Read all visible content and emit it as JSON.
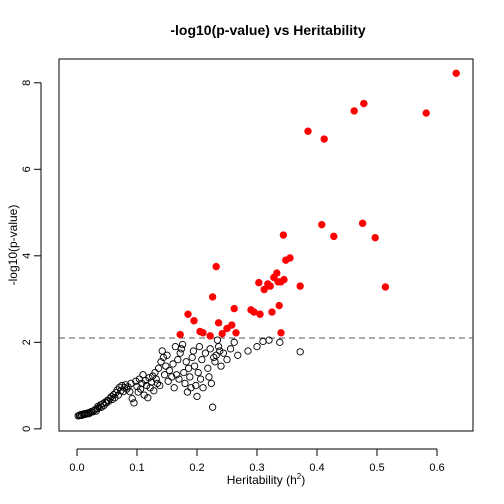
{
  "chart_data": {
    "type": "scatter",
    "title": "-log10(p-value) vs Heritability",
    "xlabel": "Heritability (h",
    "xlabel_superscript": "2",
    "xlabel_suffix": ")",
    "ylabel": "-log10(p-value)",
    "xlim": [
      -0.03,
      0.66
    ],
    "ylim": [
      -0.05,
      8.55
    ],
    "xticks": [
      "0.0",
      "0.1",
      "0.2",
      "0.3",
      "0.4",
      "0.5",
      "0.6"
    ],
    "xtick_values": [
      0,
      0.1,
      0.2,
      0.3,
      0.4,
      0.5,
      0.6
    ],
    "yticks": [
      "0",
      "2",
      "4",
      "6",
      "8"
    ],
    "ytick_values": [
      0,
      2,
      4,
      6,
      8
    ],
    "threshold": 2.1,
    "grid": false,
    "colors": {
      "significant": "#ff0000",
      "nonsignificant": "#000000",
      "threshold_line": "#555555"
    },
    "series": [
      {
        "marker": "open-circle",
        "points": [
          [
            0.002,
            0.3
          ],
          [
            0.004,
            0.31
          ],
          [
            0.005,
            0.32
          ],
          [
            0.007,
            0.33
          ],
          [
            0.008,
            0.31
          ],
          [
            0.01,
            0.34
          ],
          [
            0.012,
            0.33
          ],
          [
            0.013,
            0.35
          ],
          [
            0.015,
            0.34
          ],
          [
            0.017,
            0.36
          ],
          [
            0.019,
            0.37
          ],
          [
            0.02,
            0.35
          ],
          [
            0.022,
            0.38
          ],
          [
            0.024,
            0.4
          ],
          [
            0.026,
            0.39
          ],
          [
            0.028,
            0.42
          ],
          [
            0.03,
            0.44
          ],
          [
            0.032,
            0.41
          ],
          [
            0.034,
            0.47
          ],
          [
            0.035,
            0.52
          ],
          [
            0.037,
            0.49
          ],
          [
            0.039,
            0.55
          ],
          [
            0.041,
            0.5
          ],
          [
            0.043,
            0.58
          ],
          [
            0.045,
            0.54
          ],
          [
            0.047,
            0.62
          ],
          [
            0.049,
            0.6
          ],
          [
            0.051,
            0.66
          ],
          [
            0.053,
            0.64
          ],
          [
            0.055,
            0.7
          ],
          [
            0.057,
            0.74
          ],
          [
            0.059,
            0.68
          ],
          [
            0.061,
            0.79
          ],
          [
            0.063,
            0.72
          ],
          [
            0.065,
            0.84
          ],
          [
            0.067,
            0.9
          ],
          [
            0.069,
            0.78
          ],
          [
            0.071,
            0.96
          ],
          [
            0.073,
            0.88
          ],
          [
            0.075,
            1.0
          ],
          [
            0.077,
            0.86
          ],
          [
            0.079,
            0.95
          ],
          [
            0.081,
            1.02
          ],
          [
            0.083,
            0.92
          ],
          [
            0.085,
            0.97
          ],
          [
            0.088,
            0.86
          ],
          [
            0.09,
            1.05
          ],
          [
            0.092,
            0.7
          ],
          [
            0.095,
            0.6
          ],
          [
            0.098,
            1.1
          ],
          [
            0.1,
            0.98
          ],
          [
            0.102,
            0.85
          ],
          [
            0.104,
            1.15
          ],
          [
            0.106,
            0.92
          ],
          [
            0.108,
            1.05
          ],
          [
            0.11,
            1.25
          ],
          [
            0.112,
            0.78
          ],
          [
            0.114,
            1.12
          ],
          [
            0.116,
            1.0
          ],
          [
            0.118,
            0.72
          ],
          [
            0.12,
            1.18
          ],
          [
            0.122,
            0.95
          ],
          [
            0.124,
            1.08
          ],
          [
            0.126,
            1.22
          ],
          [
            0.128,
            0.88
          ],
          [
            0.13,
            1.3
          ],
          [
            0.132,
            1.15
          ],
          [
            0.134,
            1.05
          ],
          [
            0.136,
            1.4
          ],
          [
            0.138,
            1.0
          ],
          [
            0.14,
            1.55
          ],
          [
            0.142,
            1.8
          ],
          [
            0.144,
            1.65
          ],
          [
            0.146,
            1.25
          ],
          [
            0.148,
            1.45
          ],
          [
            0.15,
            1.7
          ],
          [
            0.152,
            1.1
          ],
          [
            0.154,
            1.35
          ],
          [
            0.158,
            1.2
          ],
          [
            0.16,
            1.5
          ],
          [
            0.162,
            0.95
          ],
          [
            0.164,
            1.9
          ],
          [
            0.166,
            1.25
          ],
          [
            0.168,
            1.6
          ],
          [
            0.17,
            1.15
          ],
          [
            0.172,
            1.75
          ],
          [
            0.174,
            1.85
          ],
          [
            0.176,
            1.95
          ],
          [
            0.178,
            1.3
          ],
          [
            0.18,
            1.05
          ],
          [
            0.182,
            1.55
          ],
          [
            0.184,
            0.85
          ],
          [
            0.186,
            1.4
          ],
          [
            0.188,
            1.2
          ],
          [
            0.19,
            0.95
          ],
          [
            0.192,
            1.65
          ],
          [
            0.194,
            1.8
          ],
          [
            0.196,
            1.45
          ],
          [
            0.198,
            1.0
          ],
          [
            0.2,
            0.75
          ],
          [
            0.202,
            1.3
          ],
          [
            0.204,
            1.9
          ],
          [
            0.206,
            1.15
          ],
          [
            0.208,
            1.6
          ],
          [
            0.21,
            0.95
          ],
          [
            0.214,
            1.75
          ],
          [
            0.218,
            1.4
          ],
          [
            0.22,
            1.2
          ],
          [
            0.222,
            1.85
          ],
          [
            0.224,
            1.05
          ],
          [
            0.226,
            0.5
          ],
          [
            0.228,
            1.65
          ],
          [
            0.23,
            1.55
          ],
          [
            0.232,
            1.7
          ],
          [
            0.234,
            2.05
          ],
          [
            0.236,
            1.9
          ],
          [
            0.238,
            1.8
          ],
          [
            0.24,
            1.45
          ],
          [
            0.244,
            1.75
          ],
          [
            0.25,
            1.6
          ],
          [
            0.256,
            1.85
          ],
          [
            0.262,
            2.0
          ],
          [
            0.268,
            1.7
          ],
          [
            0.285,
            1.8
          ],
          [
            0.3,
            1.9
          ],
          [
            0.31,
            2.02
          ],
          [
            0.32,
            2.05
          ],
          [
            0.338,
            2.0
          ],
          [
            0.372,
            1.78
          ]
        ]
      },
      {
        "marker": "filled-circle",
        "points": [
          [
            0.172,
            2.18
          ],
          [
            0.185,
            2.65
          ],
          [
            0.195,
            2.5
          ],
          [
            0.205,
            2.25
          ],
          [
            0.21,
            2.22
          ],
          [
            0.222,
            2.15
          ],
          [
            0.226,
            3.05
          ],
          [
            0.232,
            3.75
          ],
          [
            0.236,
            2.45
          ],
          [
            0.242,
            2.2
          ],
          [
            0.25,
            2.32
          ],
          [
            0.258,
            2.4
          ],
          [
            0.262,
            2.78
          ],
          [
            0.265,
            2.22
          ],
          [
            0.29,
            2.75
          ],
          [
            0.295,
            2.7
          ],
          [
            0.303,
            3.38
          ],
          [
            0.305,
            2.65
          ],
          [
            0.312,
            3.22
          ],
          [
            0.318,
            3.35
          ],
          [
            0.322,
            3.3
          ],
          [
            0.325,
            2.7
          ],
          [
            0.328,
            3.5
          ],
          [
            0.333,
            3.6
          ],
          [
            0.337,
            2.85
          ],
          [
            0.34,
            3.4
          ],
          [
            0.344,
            4.48
          ],
          [
            0.348,
            3.9
          ],
          [
            0.355,
            3.95
          ],
          [
            0.34,
            2.22
          ],
          [
            0.372,
            3.3
          ],
          [
            0.385,
            6.88
          ],
          [
            0.408,
            4.72
          ],
          [
            0.412,
            6.7
          ],
          [
            0.428,
            4.45
          ],
          [
            0.462,
            7.35
          ],
          [
            0.476,
            4.75
          ],
          [
            0.478,
            7.52
          ],
          [
            0.497,
            4.42
          ],
          [
            0.514,
            3.28
          ],
          [
            0.582,
            7.3
          ],
          [
            0.632,
            8.22
          ],
          [
            0.345,
            3.45
          ],
          [
            0.335,
            3.4
          ]
        ]
      }
    ]
  }
}
